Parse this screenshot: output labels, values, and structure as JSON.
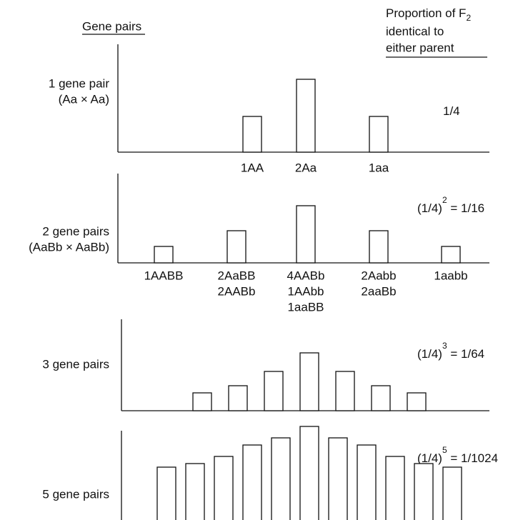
{
  "header": {
    "title": "Gene pairs",
    "heading_line1": "Proportion of F",
    "heading_subscript": "2",
    "heading_line2": "identical to",
    "heading_line3": "either parent"
  },
  "chart_data": [
    {
      "type": "bar",
      "label": [
        "1 gene pair",
        "(Aa × Aa)"
      ],
      "proportion": {
        "base": "1/4"
      },
      "categories": [
        [
          "1AA"
        ],
        [
          "2Aa"
        ],
        [
          "1aa"
        ]
      ],
      "values": [
        50,
        102,
        50
      ],
      "color": "#ffffff"
    },
    {
      "type": "bar",
      "label": [
        "2 gene pairs",
        "(AaBb × AaBb)"
      ],
      "proportion": {
        "base": "(1/4)",
        "exponent": "2",
        "rest": " = 1/16"
      },
      "categories": [
        [
          "1AABB"
        ],
        [
          "2AaBB",
          "2AABb"
        ],
        [
          "4AABb",
          "1AAbb",
          "1aaBB"
        ],
        [
          "2Aabb",
          "2aaBb"
        ],
        [
          "1aabb"
        ]
      ],
      "values": [
        23,
        45,
        80,
        45,
        23
      ],
      "color": "#ffffff"
    },
    {
      "type": "bar",
      "label": [
        "3 gene pairs"
      ],
      "proportion": {
        "base": "(1/4)",
        "exponent": "3",
        "rest": " = 1/64"
      },
      "values": [
        25,
        35,
        55,
        81,
        55,
        35,
        25
      ],
      "color": "#ffffff"
    },
    {
      "type": "bar",
      "label": [
        "5 gene pairs"
      ],
      "proportion": {
        "base": "(1/4)",
        "exponent": "5",
        "rest": " = 1/1024"
      },
      "values": [
        86,
        91,
        101,
        117,
        127,
        143,
        127,
        117,
        101,
        91,
        86
      ],
      "color": "#ffffff"
    }
  ]
}
